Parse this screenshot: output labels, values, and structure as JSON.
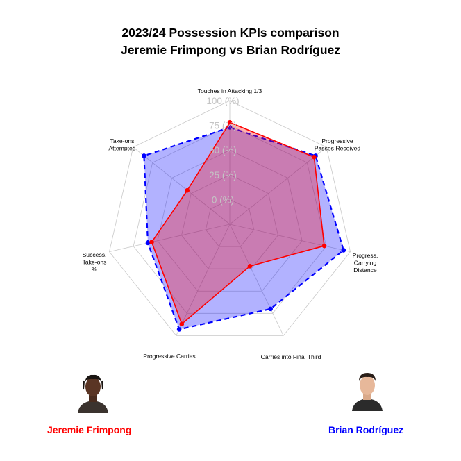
{
  "title_line1": "2023/24 Possession KPIs comparison",
  "title_line2": "Jeremie Frimpong vs Brian Rodríguez",
  "chart_data": {
    "type": "radar",
    "title": "2023/24 Possession KPIs comparison\nJeremie Frimpong vs Brian Rodríguez",
    "axes": [
      [
        "Touches in Attacking 1/3"
      ],
      [
        "Progressive",
        "Passes Received"
      ],
      [
        "Progress.",
        "Carrying",
        "Distance"
      ],
      [
        "Carries into Final Third"
      ],
      [
        "Progressive Carries"
      ],
      [
        "Success.",
        "Take-ons",
        "%"
      ],
      [
        "Take-ons",
        "Attempted"
      ]
    ],
    "ring_labels": [
      "0 (%)",
      "25 (%)",
      "50 (%)",
      "75 (%)",
      "100 (%)"
    ],
    "ring_values": [
      0,
      25,
      50,
      75,
      100
    ],
    "min_value_percent": -25,
    "max_value_percent": 100,
    "grid": true,
    "legend_position": "bottom",
    "series": [
      {
        "name": "Jeremie Frimpong",
        "color": "#ff0000",
        "fill": "#ff0000",
        "line_style": "solid",
        "values": [
          78,
          84,
          73,
          22,
          87,
          56,
          30
        ]
      },
      {
        "name": "Brian Rodríguez",
        "color": "#0000ff",
        "fill": "#0000ff",
        "line_style": "dashed",
        "values": [
          73,
          86,
          93,
          70,
          93,
          60,
          86
        ]
      }
    ]
  },
  "legend": {
    "player1": {
      "name": "Jeremie Frimpong",
      "color": "#ff0000",
      "photo_icon": "player-photo-icon"
    },
    "player2": {
      "name": "Brian Rodríguez",
      "color": "#0000ff",
      "photo_icon": "player-photo-icon"
    }
  }
}
